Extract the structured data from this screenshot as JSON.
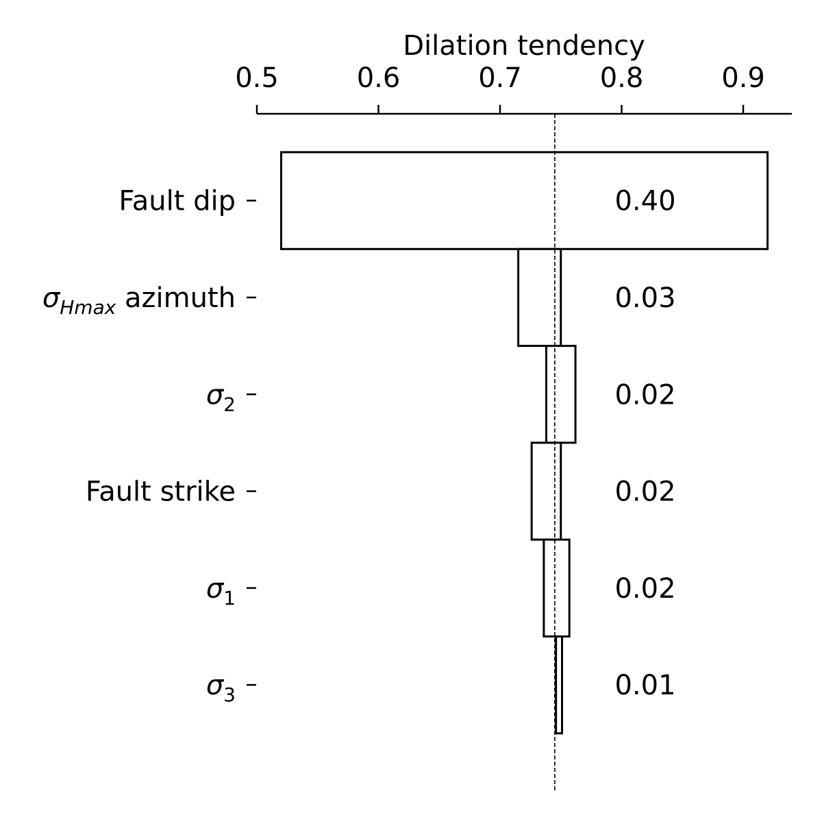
{
  "chart_data": {
    "type": "bar",
    "subtype": "tornado",
    "title": "",
    "xlabel": "Dilation tendency",
    "ylabel": "",
    "xaxis_position": "top",
    "xlim": [
      0.5,
      0.94
    ],
    "xticks": [
      0.5,
      0.6,
      0.7,
      0.8,
      0.9
    ],
    "xtick_labels": [
      "0.5",
      "0.6",
      "0.7",
      "0.8",
      "0.9"
    ],
    "baseline": 0.745,
    "grid": false,
    "legend": "none",
    "categories": [
      {
        "label": "Fault dip",
        "symbol": "",
        "subscript": "",
        "suffix": ""
      },
      {
        "label": "σHmax azimuth",
        "symbol": "σ",
        "subscript": "Hmax",
        "suffix": " azimuth",
        "subscript_italic": true
      },
      {
        "label": "σ2",
        "symbol": "σ",
        "subscript": "2",
        "suffix": ""
      },
      {
        "label": "Fault strike",
        "symbol": "",
        "subscript": "",
        "suffix": ""
      },
      {
        "label": "σ1",
        "symbol": "σ",
        "subscript": "1",
        "suffix": ""
      },
      {
        "label": "σ3",
        "symbol": "σ",
        "subscript": "3",
        "suffix": ""
      }
    ],
    "ranges": [
      [
        0.52,
        0.92
      ],
      [
        0.715,
        0.75
      ],
      [
        0.738,
        0.762
      ],
      [
        0.726,
        0.75
      ],
      [
        0.736,
        0.757
      ],
      [
        0.746,
        0.751
      ]
    ],
    "value_labels": [
      "0.40",
      "0.03",
      "0.02",
      "0.02",
      "0.02",
      "0.01"
    ],
    "colors": {
      "bar_fill": "#ffffff",
      "bar_edge": "#000000",
      "text": "#000000"
    }
  }
}
